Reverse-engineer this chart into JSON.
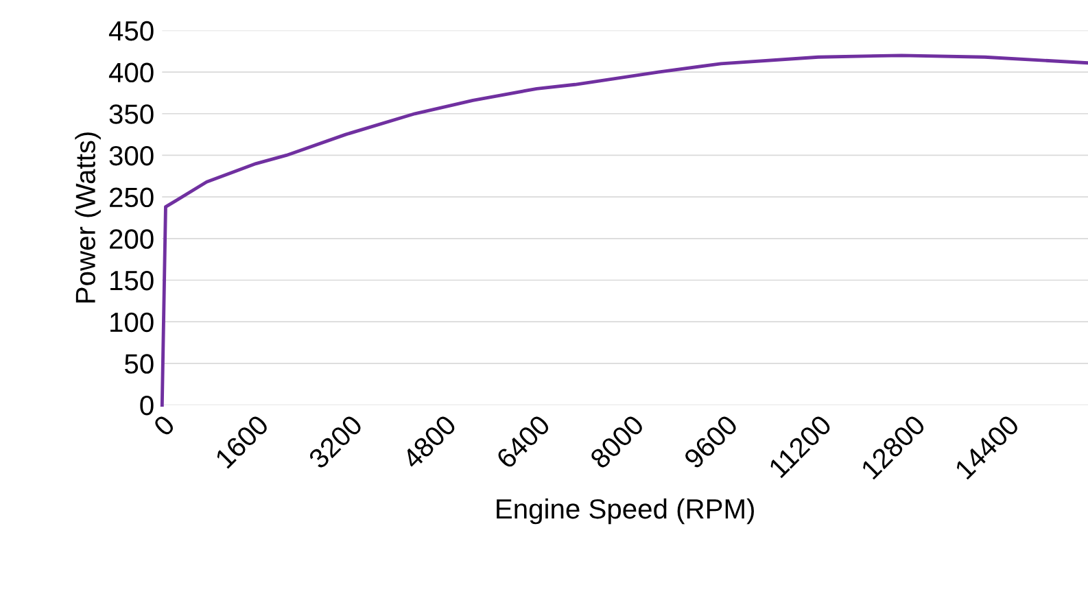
{
  "chart_data": {
    "type": "line",
    "xlabel": "Engine Speed (RPM)",
    "ylabel": "Power (Watts)",
    "x": [
      0,
      60,
      760,
      1600,
      2120,
      3130,
      4310,
      5300,
      6390,
      7040,
      8460,
      9530,
      11190,
      12610,
      14030,
      15790
    ],
    "series": [
      {
        "color": "#7030a0",
        "values": [
          0,
          238,
          268,
          290,
          300,
          325,
          350,
          366,
          380,
          385,
          400,
          410,
          418,
          420,
          418,
          411
        ]
      }
    ],
    "xlim": [
      0,
      15790
    ],
    "xticks": [
      0,
      1600,
      3200,
      4800,
      6400,
      8000,
      9600,
      11200,
      12800,
      14400
    ],
    "ylim": [
      0,
      450
    ],
    "yticks": [
      0,
      50,
      100,
      150,
      200,
      250,
      300,
      350,
      400,
      450
    ],
    "grid": "y",
    "marker": "none",
    "line_style": "solid"
  }
}
